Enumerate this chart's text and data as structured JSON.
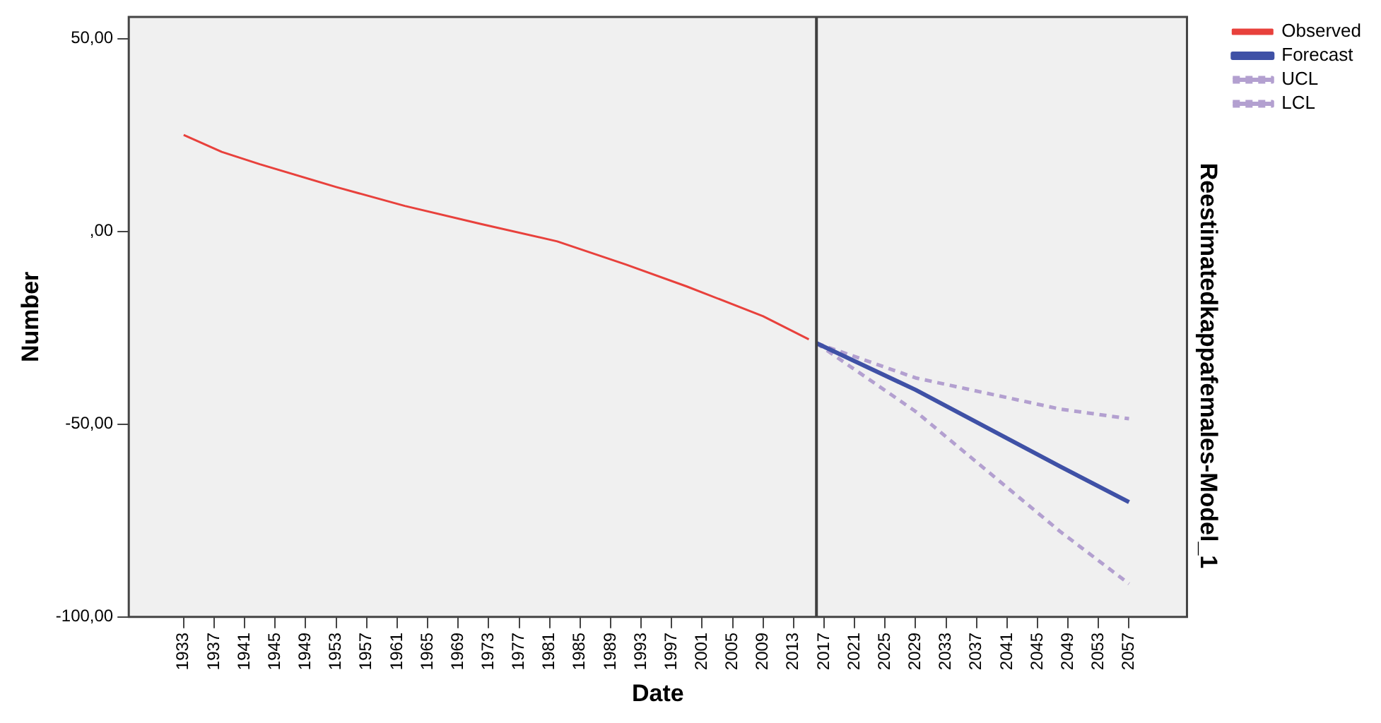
{
  "chart_data": {
    "type": "line",
    "title": "Reestimatedkappafemales-Model_1",
    "xlabel": "Date",
    "ylabel": "Number",
    "xlim": [
      1925.8,
      2064.6
    ],
    "xticks": [
      1933,
      1937,
      1941,
      1945,
      1949,
      1953,
      1957,
      1961,
      1965,
      1969,
      1973,
      1977,
      1981,
      1985,
      1989,
      1993,
      1997,
      2001,
      2005,
      2009,
      2013,
      2017,
      2021,
      2025,
      2029,
      2033,
      2037,
      2041,
      2045,
      2049,
      2053,
      2057
    ],
    "ylim": [
      -100,
      55.6
    ],
    "yticks": [
      {
        "value": 50,
        "label": "50,00"
      },
      {
        "value": 0,
        "label": ",00"
      },
      {
        "value": -50,
        "label": "-50,00"
      },
      {
        "value": -100,
        "label": "-100,00"
      }
    ],
    "grid": false,
    "legend": "top right",
    "marker": "none",
    "ref_lines": [
      {
        "axis": "x",
        "value": 2016,
        "color": "#404040"
      }
    ],
    "series": [
      {
        "name": "Observed",
        "color": "#e8413c",
        "line_style": "solid",
        "x": [
          1933,
          1938,
          1943,
          1953,
          1962,
          1972,
          1982,
          1991,
          1999,
          2009,
          2015
        ],
        "values": [
          25,
          20.6,
          17.4,
          11.5,
          6.6,
          1.9,
          -2.6,
          -8.6,
          -14.3,
          -22,
          -28
        ]
      },
      {
        "name": "Forecast",
        "color": "#3f51a6",
        "line_style": "solid",
        "x": [
          2016,
          2029,
          2048,
          2057
        ],
        "values": [
          -29,
          -41.1,
          -61,
          -70.2
        ]
      },
      {
        "name": "UCL",
        "color": "#b3a0d0",
        "line_style": "dashed",
        "x": [
          2016,
          2029,
          2048,
          2057
        ],
        "values": [
          -29,
          -38,
          -46.1,
          -48.6
        ]
      },
      {
        "name": "LCL",
        "color": "#b3a0d0",
        "line_style": "dashed",
        "x": [
          2016,
          2029,
          2048,
          2057
        ],
        "values": [
          -29,
          -46.7,
          -77.9,
          -91.4
        ]
      }
    ]
  }
}
